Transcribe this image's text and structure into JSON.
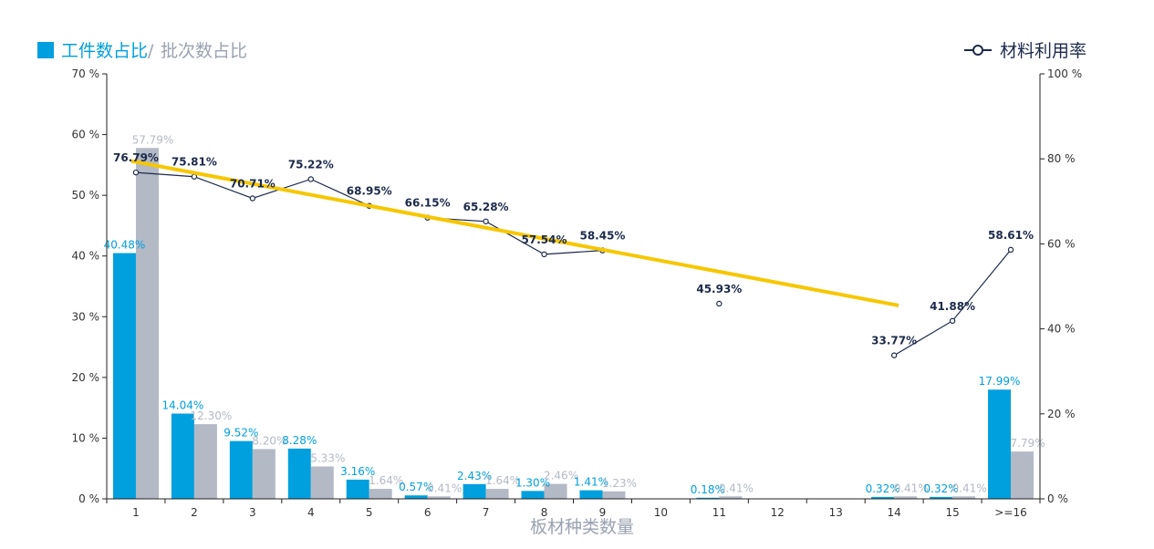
{
  "chart_data": {
    "type": "bar",
    "xlabel": "板材种类数量",
    "categories": [
      "1",
      "2",
      "3",
      "4",
      "5",
      "6",
      "7",
      "8",
      "9",
      "10",
      "11",
      "12",
      "13",
      "14",
      "15",
      ">=16"
    ],
    "y_left": {
      "min": 0,
      "max": 70,
      "ticks": [
        "0 %",
        "10 %",
        "20 %",
        "30 %",
        "40 %",
        "50 %",
        "60 %",
        "70 %"
      ]
    },
    "y_right": {
      "min": 0,
      "max": 100,
      "ticks": [
        "0 %",
        "20 %",
        "40 %",
        "60 %",
        "80 %",
        "100 %"
      ]
    },
    "legend_left": {
      "primary": "工件数占比",
      "separator": "/",
      "secondary": "批次数占比"
    },
    "legend_right": {
      "label": "材料利用率"
    },
    "colors": {
      "workpiece": "#009fde",
      "batch": "#b3b9c5",
      "utilization": "#1c2a4b",
      "trend": "#f6c700"
    },
    "series": [
      {
        "name": "工件数占比",
        "axis": "left",
        "values": [
          40.48,
          14.04,
          9.52,
          8.28,
          3.16,
          0.57,
          2.43,
          1.3,
          1.41,
          null,
          0.18,
          null,
          null,
          0.32,
          0.32,
          17.99
        ],
        "labels": [
          "40.48%",
          "14.04%",
          "9.52%",
          "8.28%",
          "3.16%",
          "0.57%",
          "2.43%",
          "1.30%",
          "1.41%",
          "",
          "0.18%",
          "",
          "",
          "0.32%",
          "0.32%",
          "17.99%"
        ]
      },
      {
        "name": "批次数占比",
        "axis": "left",
        "values": [
          57.79,
          12.3,
          8.2,
          5.33,
          1.64,
          0.41,
          1.64,
          2.46,
          1.23,
          null,
          0.41,
          null,
          null,
          0.41,
          0.41,
          7.79
        ],
        "labels": [
          "57.79%",
          "12.30%",
          "8.20%",
          "5.33%",
          "1.64%",
          "0.41%",
          "1.64%",
          "2.46%",
          "1.23%",
          "",
          "0.41%",
          "",
          "",
          "0.41%",
          "0.41%",
          "7.79%"
        ]
      },
      {
        "name": "材料利用率",
        "axis": "right",
        "type": "line",
        "values": [
          76.79,
          75.81,
          70.71,
          75.22,
          68.95,
          66.15,
          65.28,
          57.54,
          58.45,
          null,
          45.93,
          null,
          null,
          33.77,
          41.88,
          58.61
        ],
        "labels": [
          "76.79%",
          "75.81%",
          "70.71%",
          "75.22%",
          "68.95%",
          "66.15%",
          "65.28%",
          "57.54%",
          "58.45%",
          "",
          "45.93%",
          "",
          "",
          "33.77%",
          "41.88%",
          "58.61%"
        ]
      }
    ],
    "trendline": {
      "axis": "right",
      "from": {
        "x": "1",
        "y": 79.5
      },
      "to": {
        "x": "14",
        "y": 45.5
      }
    }
  }
}
